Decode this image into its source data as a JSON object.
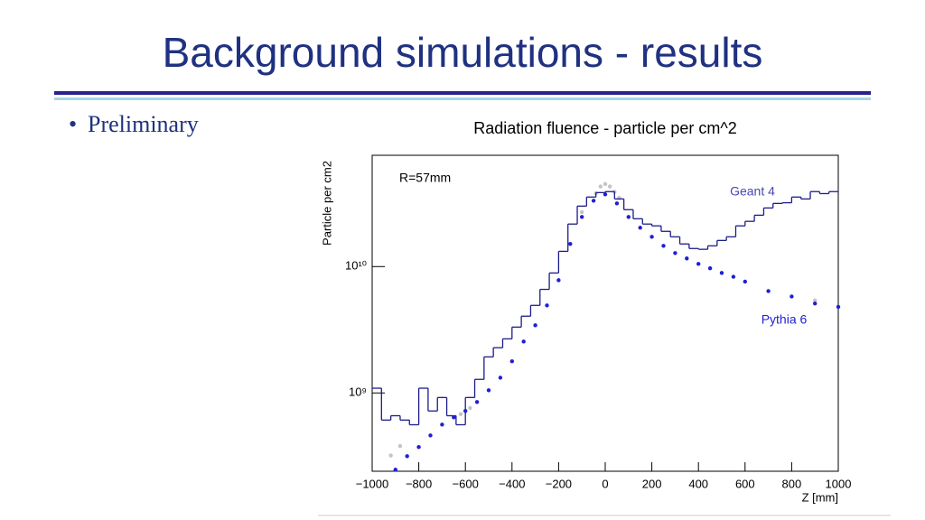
{
  "slide": {
    "title": "Background simulations - results",
    "bullets": [
      "Preliminary"
    ]
  },
  "chart_data": {
    "type": "histogram",
    "title": "Radiation fluence - particle per cm^2",
    "x_label": "Z [mm]",
    "y_label": "Particle per cm2",
    "annotations": [
      "R=57mm"
    ],
    "yscale": "log",
    "xlim": [
      -1000,
      1000
    ],
    "xticks": [
      {
        "value": -1000,
        "label": "−1000"
      },
      {
        "value": -800,
        "label": "−800"
      },
      {
        "value": -600,
        "label": "−600"
      },
      {
        "value": -400,
        "label": "−400"
      },
      {
        "value": -200,
        "label": "−200"
      },
      0,
      200,
      400,
      600,
      800,
      1000
    ],
    "ylim": [
      240000000.0,
      76000000000.0
    ],
    "yticks": [
      {
        "value": 1000000000,
        "label": "10⁹"
      },
      {
        "value": 10000000000,
        "label": "10¹⁰"
      }
    ],
    "series": [
      {
        "name": "Geant 4",
        "type": "step",
        "color": "#1c1c8a",
        "bins": [
          -1000,
          -960,
          -920,
          -880,
          -840,
          -800,
          -760,
          -720,
          -680,
          -640,
          -600,
          -560,
          -520,
          -480,
          -440,
          -400,
          -360,
          -320,
          -280,
          -240,
          -200,
          -160,
          -120,
          -80,
          -40,
          0,
          40,
          80,
          120,
          160,
          200,
          240,
          280,
          320,
          360,
          400,
          440,
          480,
          520,
          560,
          600,
          640,
          680,
          720,
          760,
          800,
          840,
          880,
          920,
          960,
          1000
        ],
        "values": [
          1090000000.0,
          610000000.0,
          660000000.0,
          610000000.0,
          560000000.0,
          1090000000.0,
          720000000.0,
          920000000.0,
          660000000.0,
          560000000.0,
          920000000.0,
          1280000000.0,
          1930000000.0,
          2280000000.0,
          2680000000.0,
          3320000000.0,
          4050000000.0,
          4930000000.0,
          6600000000.0,
          8900000000.0,
          13200000000.0,
          21700000000.0,
          30100000000.0,
          35500000000.0,
          38500000000.0,
          39200000000.0,
          34300000000.0,
          28200000000.0,
          23900000000.0,
          21700000000.0,
          21000000000.0,
          19000000000.0,
          17200000000.0,
          15100000000.0,
          13900000000.0,
          13700000000.0,
          14600000000.0,
          16100000000.0,
          17200000000.0,
          21000000000.0,
          22800000000.0,
          25500000000.0,
          29100000000.0,
          31600000000.0,
          32000000000.0,
          35500000000.0,
          34300000000.0,
          39200000000.0,
          37800000000.0,
          39200000000.0
        ]
      },
      {
        "name": "Pythia 6",
        "type": "scatter",
        "color": "#1f1fd6",
        "x": [
          -900,
          -850,
          -800,
          -750,
          -700,
          -650,
          -600,
          -550,
          -500,
          -450,
          -400,
          -350,
          -300,
          -250,
          -200,
          -150,
          -100,
          -50,
          0,
          50,
          100,
          150,
          200,
          250,
          300,
          350,
          400,
          450,
          500,
          550,
          600,
          700,
          800,
          900,
          1000
        ],
        "values": [
          247000000.0,
          316000000.0,
          373000000.0,
          461000000.0,
          562000000.0,
          641000000.0,
          720000000.0,
          848000000.0,
          1050000000.0,
          1320000000.0,
          1780000000.0,
          2550000000.0,
          3430000000.0,
          4930000000.0,
          7800000000.0,
          15100000000.0,
          24700000000.0,
          33200000000.0,
          37300000000.0,
          31600000000.0,
          24700000000.0,
          20300000000.0,
          17200000000.0,
          14600000000.0,
          12800000000.0,
          11600000000.0,
          10500000000.0,
          9700000000.0,
          8900000000.0,
          8300000000.0,
          7600000000.0,
          6400000000.0,
          5800000000.0,
          5100000000.0,
          4800000000.0
        ]
      },
      {
        "type": "scatter",
        "color": "#c4c4c4",
        "x": [
          -920,
          -880,
          -620,
          -580,
          -100,
          -40,
          -20,
          0,
          20,
          40,
          60,
          900
        ],
        "values": [
          320000000.0,
          380000000.0,
          680000000.0,
          760000000.0,
          27000000000.0,
          38000000000.0,
          43000000000.0,
          45000000000.0,
          43000000000.0,
          39000000000.0,
          35000000000.0,
          5400000000.0
        ]
      }
    ]
  }
}
